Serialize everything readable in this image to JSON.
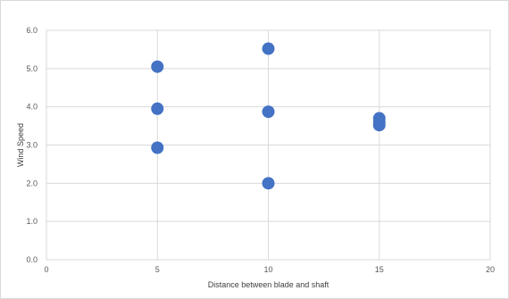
{
  "chart_data": {
    "type": "scatter",
    "title": "",
    "xlabel": "Distance between blade and shaft",
    "ylabel": "Wind Speed",
    "xlim": [
      0,
      20
    ],
    "ylim": [
      0.0,
      6.0
    ],
    "x_ticks": [
      "0",
      "5",
      "10",
      "15",
      "20"
    ],
    "y_ticks": [
      "0.0",
      "1.0",
      "2.0",
      "3.0",
      "4.0",
      "5.0",
      "6.0"
    ],
    "grid": true,
    "legend": "none",
    "marker_color": "#4472C4",
    "points": [
      {
        "x": 5,
        "y": 5.05
      },
      {
        "x": 5,
        "y": 3.95
      },
      {
        "x": 5,
        "y": 2.93
      },
      {
        "x": 10,
        "y": 5.52
      },
      {
        "x": 10,
        "y": 3.87
      },
      {
        "x": 10,
        "y": 2.0
      },
      {
        "x": 15,
        "y": 3.7
      },
      {
        "x": 15,
        "y": 3.6
      },
      {
        "x": 15,
        "y": 3.52
      }
    ]
  }
}
